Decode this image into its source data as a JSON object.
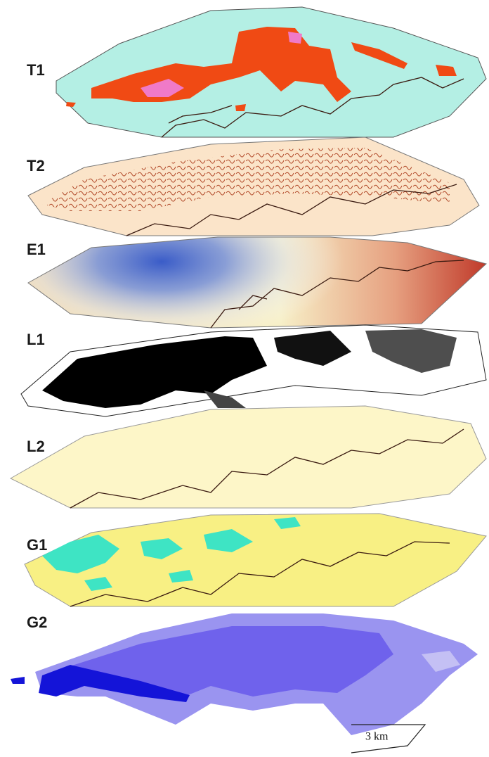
{
  "layers": [
    {
      "label": "T1"
    },
    {
      "label": "T2"
    },
    {
      "label": "E1"
    },
    {
      "label": "L1"
    },
    {
      "label": "L2"
    },
    {
      "label": "G1"
    },
    {
      "label": "G2"
    }
  ],
  "scale_bar": {
    "label": "3 km"
  }
}
